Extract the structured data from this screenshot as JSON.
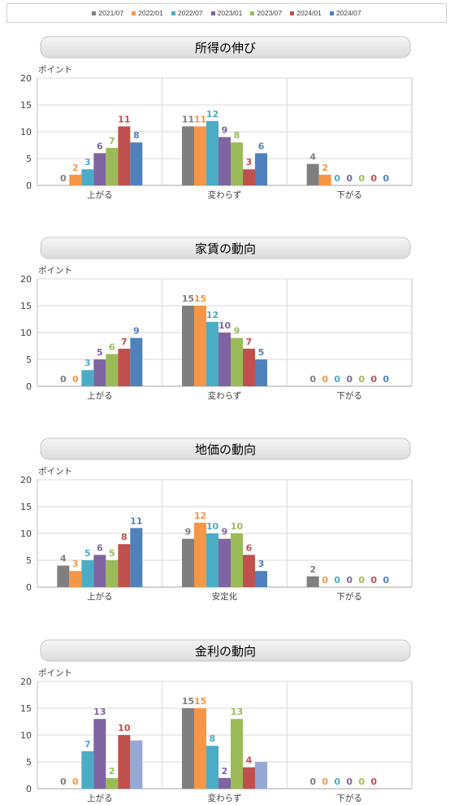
{
  "legend": {
    "series": [
      {
        "name": "2021/07",
        "color": "#7f7f7f"
      },
      {
        "name": "2022/01",
        "color": "#f79646"
      },
      {
        "name": "2022/07",
        "color": "#4bacc6"
      },
      {
        "name": "2023/01",
        "color": "#8064a2"
      },
      {
        "name": "2023/07",
        "color": "#9bbb59"
      },
      {
        "name": "2024/01",
        "color": "#c0504d"
      },
      {
        "name": "2024/07",
        "color": "#4f81bd"
      }
    ]
  },
  "chart_data": [
    {
      "type": "bar",
      "title": "所得の伸び",
      "ylabel": "ポイント",
      "ylim": [
        0,
        20
      ],
      "yticks": [
        0,
        5,
        10,
        15,
        20
      ],
      "grid": true,
      "categories": [
        "上がる",
        "変わらず",
        "下がる"
      ],
      "series": [
        {
          "name": "2021/07",
          "values": [
            0,
            11,
            4
          ]
        },
        {
          "name": "2022/01",
          "values": [
            2,
            11,
            2
          ]
        },
        {
          "name": "2022/07",
          "values": [
            3,
            12,
            0
          ]
        },
        {
          "name": "2023/01",
          "values": [
            6,
            9,
            0
          ]
        },
        {
          "name": "2023/07",
          "values": [
            7,
            8,
            0
          ]
        },
        {
          "name": "2024/01",
          "values": [
            11,
            3,
            0
          ]
        },
        {
          "name": "2024/07",
          "values": [
            8,
            6,
            0
          ]
        }
      ]
    },
    {
      "type": "bar",
      "title": "家賃の動向",
      "ylabel": "ポイント",
      "ylim": [
        0,
        20
      ],
      "yticks": [
        0,
        5,
        10,
        15,
        20
      ],
      "grid": true,
      "categories": [
        "上がる",
        "変わらず",
        "下がる"
      ],
      "series": [
        {
          "name": "2021/07",
          "values": [
            0,
            15,
            0
          ]
        },
        {
          "name": "2022/01",
          "values": [
            0,
            15,
            0
          ]
        },
        {
          "name": "2022/07",
          "values": [
            3,
            12,
            0
          ]
        },
        {
          "name": "2023/01",
          "values": [
            5,
            10,
            0
          ]
        },
        {
          "name": "2023/07",
          "values": [
            6,
            9,
            0
          ]
        },
        {
          "name": "2024/01",
          "values": [
            7,
            7,
            0
          ]
        },
        {
          "name": "2024/07",
          "values": [
            9,
            5,
            0
          ]
        }
      ]
    },
    {
      "type": "bar",
      "title": "地価の動向",
      "ylabel": "ポイント",
      "ylim": [
        0,
        20
      ],
      "yticks": [
        0,
        5,
        10,
        15,
        20
      ],
      "grid": true,
      "categories": [
        "上がる",
        "安定化",
        "下がる"
      ],
      "series": [
        {
          "name": "2021/07",
          "values": [
            4,
            9,
            2
          ]
        },
        {
          "name": "2022/01",
          "values": [
            3,
            12,
            0
          ]
        },
        {
          "name": "2022/07",
          "values": [
            5,
            10,
            0
          ]
        },
        {
          "name": "2023/01",
          "values": [
            6,
            9,
            0
          ]
        },
        {
          "name": "2023/07",
          "values": [
            5,
            10,
            0
          ]
        },
        {
          "name": "2024/01",
          "values": [
            8,
            6,
            0
          ]
        },
        {
          "name": "2024/07",
          "values": [
            11,
            3,
            0
          ]
        }
      ]
    },
    {
      "type": "bar",
      "title": "金利の動向",
      "ylabel": "ポイント",
      "ylim": [
        0,
        20
      ],
      "yticks": [
        0,
        5,
        10,
        15,
        20
      ],
      "grid": true,
      "categories": [
        "上がる",
        "変わらず",
        "下がる"
      ],
      "series": [
        {
          "name": "2021/07",
          "values": [
            0,
            15,
            0
          ]
        },
        {
          "name": "2022/01",
          "values": [
            0,
            15,
            0
          ]
        },
        {
          "name": "2022/07",
          "values": [
            7,
            8,
            0
          ]
        },
        {
          "name": "2023/01",
          "values": [
            13,
            2,
            0
          ]
        },
        {
          "name": "2023/07",
          "values": [
            2,
            13,
            0
          ]
        },
        {
          "name": "2024/01",
          "values": [
            10,
            4,
            0
          ]
        },
        {
          "name": "2024/07",
          "values": [
            9,
            5,
            null
          ],
          "color": "#95a9d4",
          "data_labels": false
        }
      ]
    }
  ]
}
